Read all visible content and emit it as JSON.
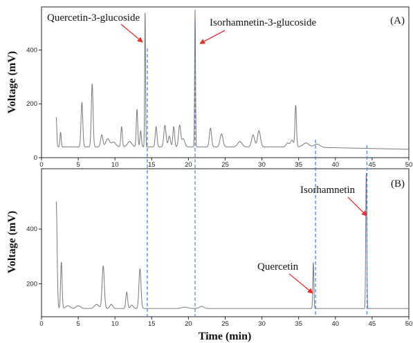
{
  "chart_data": [
    {
      "type": "line",
      "panel_label": "(A)",
      "xlabel": "",
      "ylabel": "Voltage (mV)",
      "xlim": [
        0,
        50
      ],
      "ylim": [
        0,
        560
      ],
      "x_ticks": [
        0,
        5,
        10,
        15,
        20,
        25,
        30,
        35,
        40,
        45,
        50
      ],
      "y_ticks": [
        200,
        400
      ],
      "y_tick_labels": {
        "0": "0",
        "200": "200",
        "400": "400"
      },
      "baseline": 35,
      "line_color": "#777777",
      "peaks": [
        {
          "x": 2.0,
          "h": 110,
          "w": 0.08
        },
        {
          "x": 2.6,
          "h": 55,
          "w": 0.08
        },
        {
          "x": 5.5,
          "h": 165,
          "w": 0.12
        },
        {
          "x": 6.9,
          "h": 235,
          "w": 0.12
        },
        {
          "x": 8.2,
          "h": 45,
          "w": 0.15
        },
        {
          "x": 9.0,
          "h": 30,
          "w": 0.25
        },
        {
          "x": 9.8,
          "h": 18,
          "w": 0.3
        },
        {
          "x": 10.9,
          "h": 75,
          "w": 0.1
        },
        {
          "x": 12.0,
          "h": 20,
          "w": 0.3
        },
        {
          "x": 13.0,
          "h": 140,
          "w": 0.1
        },
        {
          "x": 13.5,
          "h": 60,
          "w": 0.1
        },
        {
          "x": 14.1,
          "h": 505,
          "w": 0.06
        },
        {
          "x": 15.6,
          "h": 75,
          "w": 0.12
        },
        {
          "x": 16.8,
          "h": 80,
          "w": 0.15
        },
        {
          "x": 17.4,
          "h": 40,
          "w": 0.15
        },
        {
          "x": 18.0,
          "h": 75,
          "w": 0.12
        },
        {
          "x": 18.8,
          "h": 80,
          "w": 0.15
        },
        {
          "x": 19.3,
          "h": 30,
          "w": 0.2
        },
        {
          "x": 20.9,
          "h": 510,
          "w": 0.06
        },
        {
          "x": 23.0,
          "h": 70,
          "w": 0.15
        },
        {
          "x": 24.5,
          "h": 48,
          "w": 0.2
        },
        {
          "x": 27.0,
          "h": 20,
          "w": 0.3
        },
        {
          "x": 28.8,
          "h": 45,
          "w": 0.2
        },
        {
          "x": 29.6,
          "h": 60,
          "w": 0.2
        },
        {
          "x": 33.5,
          "h": 15,
          "w": 0.2
        },
        {
          "x": 34.1,
          "h": 25,
          "w": 0.2
        },
        {
          "x": 34.6,
          "h": 155,
          "w": 0.1
        },
        {
          "x": 36.0,
          "h": 15,
          "w": 0.4
        },
        {
          "x": 37.5,
          "h": 12,
          "w": 0.4
        }
      ],
      "annotations": [
        {
          "text": "Quercetin-3-glucoside",
          "target_x": 14.1,
          "target_y": 400
        },
        {
          "text": "Isorhamnetin-3-glucoside",
          "target_x": 20.9,
          "target_y": 415
        }
      ]
    },
    {
      "type": "line",
      "panel_label": "(B)",
      "xlabel": "Time (min)",
      "ylabel": "Voltage (mV)",
      "xlim": [
        0,
        50
      ],
      "ylim": [
        80,
        620
      ],
      "x_ticks": [
        0,
        5,
        10,
        15,
        20,
        25,
        30,
        35,
        40,
        45,
        50
      ],
      "y_ticks": [
        200,
        400
      ],
      "y_tick_labels": {
        "200": "200",
        "400": "400"
      },
      "baseline": 110,
      "line_color": "#777777",
      "peaks": [
        {
          "x": 2.0,
          "h": 390,
          "w": 0.12
        },
        {
          "x": 2.7,
          "h": 170,
          "w": 0.1
        },
        {
          "x": 3.6,
          "h": 10,
          "w": 0.3
        },
        {
          "x": 5.0,
          "h": 10,
          "w": 0.3
        },
        {
          "x": 7.5,
          "h": 15,
          "w": 0.3
        },
        {
          "x": 8.4,
          "h": 155,
          "w": 0.15
        },
        {
          "x": 9.5,
          "h": 15,
          "w": 0.2
        },
        {
          "x": 11.6,
          "h": 60,
          "w": 0.12
        },
        {
          "x": 12.3,
          "h": 12,
          "w": 0.2
        },
        {
          "x": 13.4,
          "h": 145,
          "w": 0.14
        },
        {
          "x": 19.5,
          "h": 5,
          "w": 0.4
        },
        {
          "x": 21.8,
          "h": 8,
          "w": 0.3
        },
        {
          "x": 37.0,
          "h": 170,
          "w": 0.07
        },
        {
          "x": 44.2,
          "h": 500,
          "w": 0.07
        }
      ],
      "annotations": [
        {
          "text": "Quercetin",
          "target_x": 36.8,
          "target_y": 125
        },
        {
          "text": "Isorhamnetin",
          "target_x": 44.0,
          "target_y": 420
        }
      ]
    }
  ],
  "guide_lines_x": [
    14.4,
    20.9,
    37.3,
    44.3
  ],
  "colors": {
    "trace": "#777777",
    "guide": "#4a7fd6",
    "arrow": "#e53030",
    "axis": "#222222"
  }
}
